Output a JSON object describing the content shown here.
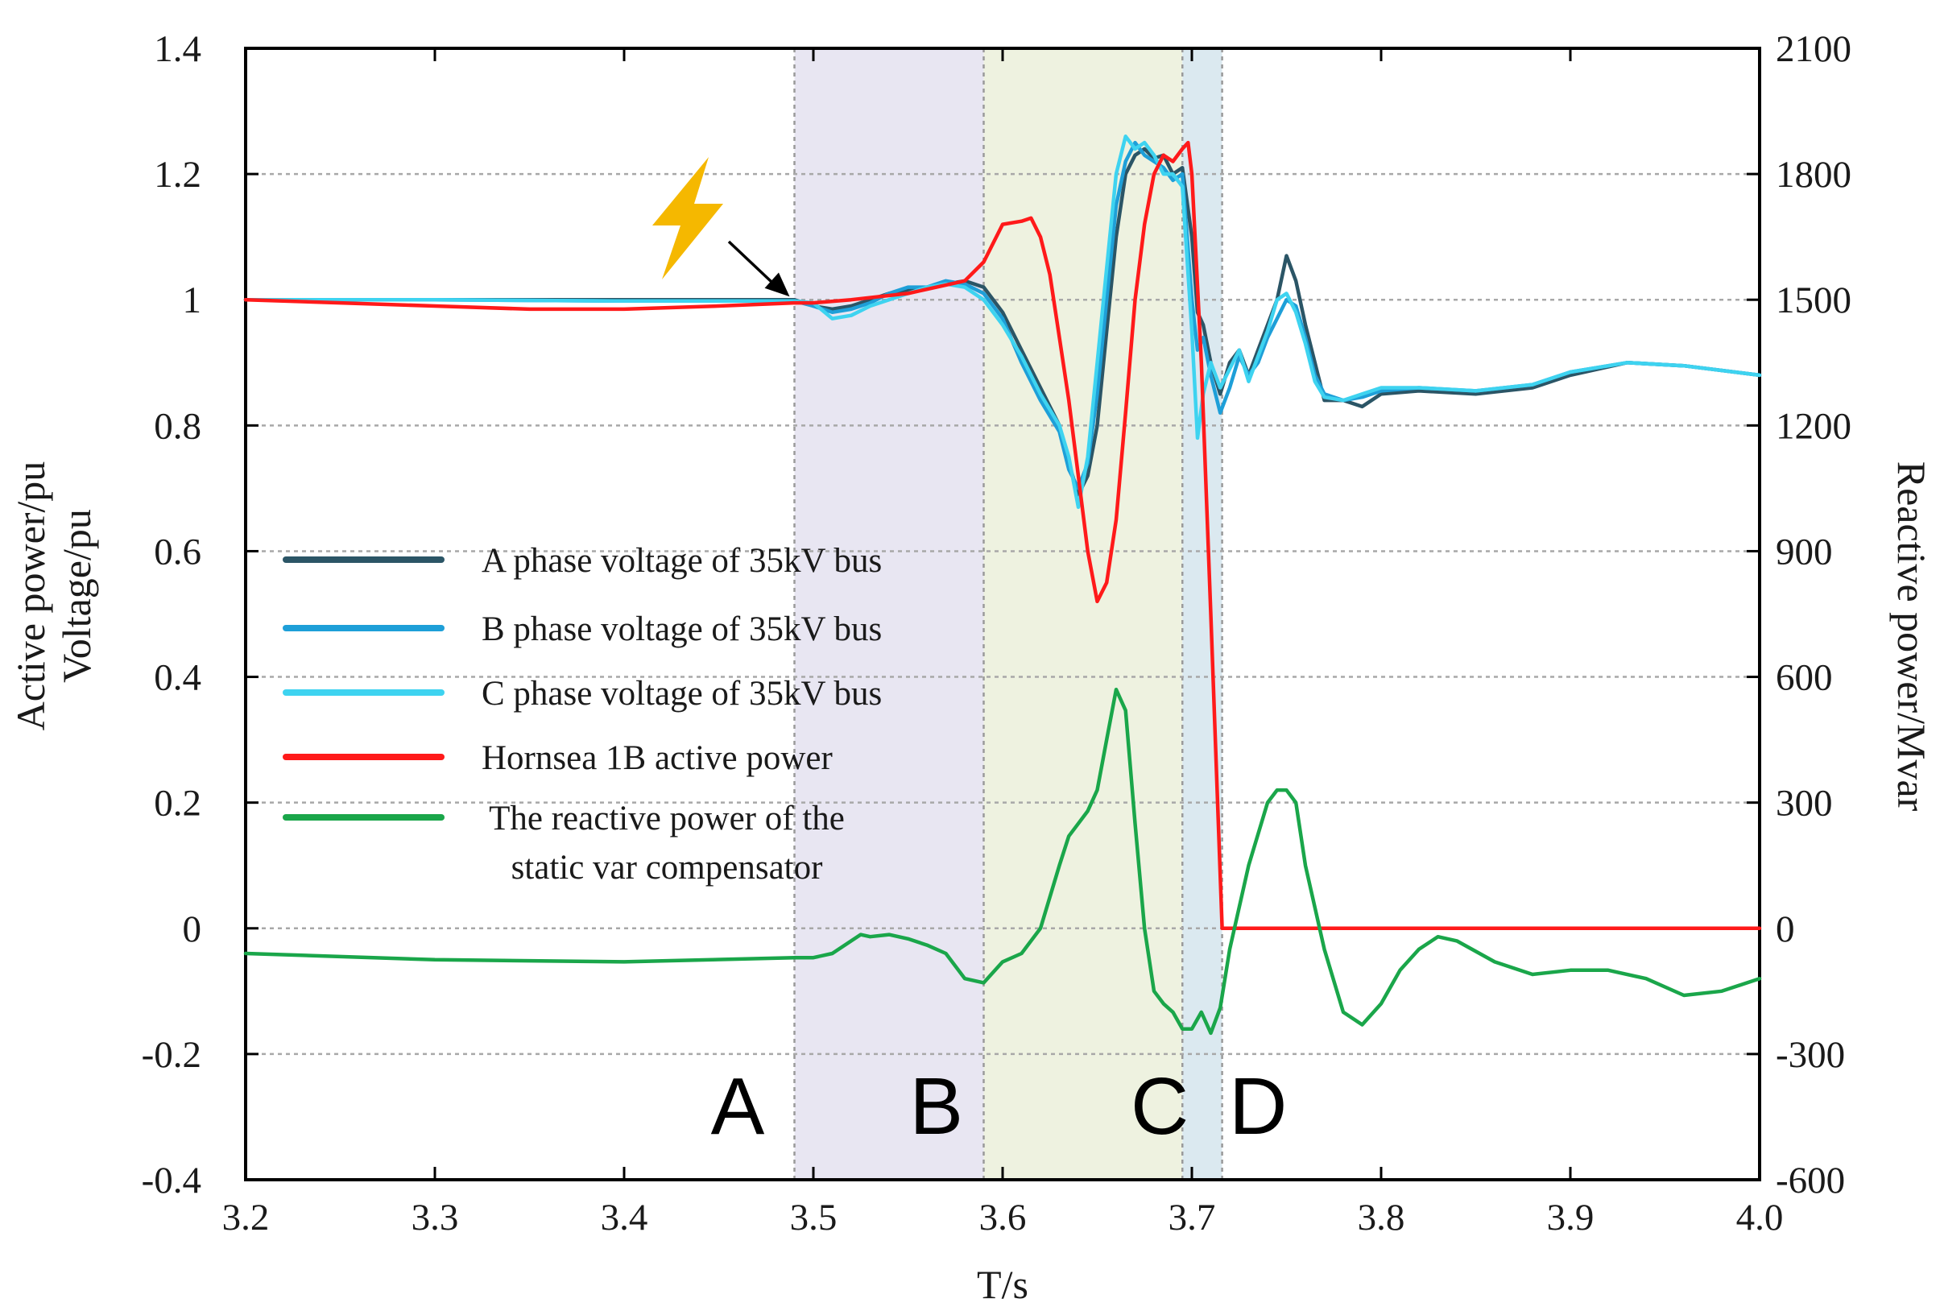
{
  "chart_data": {
    "type": "line",
    "xlabel": "T/s",
    "ylabel_left_lines": [
      "Active power/pu",
      "Voltage/pu"
    ],
    "ylabel_right": "Reactive power/Mvar",
    "xlim": [
      3.2,
      4.0
    ],
    "ylim_left": [
      -0.4,
      1.4
    ],
    "ylim_right": [
      -600,
      2100
    ],
    "x_ticks": [
      3.2,
      3.3,
      3.4,
      3.5,
      3.6,
      3.7,
      3.8,
      3.9,
      4.0
    ],
    "x_tick_labels": [
      "3.2",
      "3.3",
      "3.4",
      "3.5",
      "3.6",
      "3.7",
      "3.8",
      "3.9",
      "4.0"
    ],
    "y_left_ticks": [
      -0.4,
      -0.2,
      0,
      0.2,
      0.4,
      0.6,
      0.8,
      1.0,
      1.2,
      1.4
    ],
    "y_left_tick_labels": [
      "-0.4",
      "-0.2",
      "0",
      "0.2",
      "0.4",
      "0.6",
      "0.8",
      "1",
      "1.2",
      "1.4"
    ],
    "y_right_ticks": [
      -600,
      -300,
      0,
      300,
      600,
      900,
      1200,
      1500,
      1800,
      2100
    ],
    "y_right_tick_labels": [
      "-600",
      "-300",
      "0",
      "300",
      "600",
      "900",
      "1200",
      "1500",
      "1800",
      "2100"
    ],
    "grid": "horizontal-dotted",
    "fault_marker": {
      "x": 3.49,
      "y": 1.0,
      "icon": "lightning-bolt-icon",
      "color": "#f5b800"
    },
    "regions": [
      {
        "label": "A",
        "label_x": 3.46,
        "x_start": 3.49,
        "x_end": 3.59,
        "color": "#e8e6f2"
      },
      {
        "label": "B",
        "label_x": 3.565,
        "x_start": 3.59,
        "x_end": 3.695,
        "color": "#eef2e0"
      },
      {
        "label": "C",
        "label_x": 3.683,
        "x_start": 3.695,
        "x_end": 3.716,
        "color": "#dbe9f0"
      },
      {
        "label": "D",
        "label_x": 3.735,
        "x_start": null,
        "x_end": null,
        "color": null
      }
    ],
    "series": [
      {
        "name": "A phase voltage of 35kV bus",
        "color": "#2b5566",
        "axis": "left",
        "x": [
          3.2,
          3.3,
          3.4,
          3.49,
          3.5,
          3.51,
          3.52,
          3.53,
          3.54,
          3.55,
          3.56,
          3.57,
          3.58,
          3.59,
          3.6,
          3.61,
          3.62,
          3.63,
          3.635,
          3.64,
          3.645,
          3.65,
          3.655,
          3.66,
          3.665,
          3.67,
          3.675,
          3.68,
          3.685,
          3.69,
          3.695,
          3.7,
          3.703,
          3.706,
          3.71,
          3.715,
          3.72,
          3.725,
          3.73,
          3.735,
          3.74,
          3.745,
          3.75,
          3.755,
          3.76,
          3.765,
          3.77,
          3.78,
          3.79,
          3.8,
          3.82,
          3.85,
          3.88,
          3.9,
          3.93,
          3.96,
          4.0
        ],
        "y": [
          1.0,
          1.0,
          1.0,
          1.0,
          0.99,
          0.985,
          0.99,
          1.0,
          1.01,
          1.015,
          1.02,
          1.025,
          1.03,
          1.02,
          0.98,
          0.92,
          0.86,
          0.8,
          0.74,
          0.69,
          0.72,
          0.8,
          0.95,
          1.1,
          1.2,
          1.23,
          1.24,
          1.225,
          1.23,
          1.2,
          1.21,
          1.1,
          0.98,
          0.96,
          0.9,
          0.85,
          0.9,
          0.92,
          0.88,
          0.92,
          0.96,
          1.0,
          1.07,
          1.03,
          0.96,
          0.9,
          0.84,
          0.84,
          0.83,
          0.85,
          0.855,
          0.85,
          0.86,
          0.88,
          0.9,
          0.895,
          0.88
        ]
      },
      {
        "name": "B phase voltage of 35kV bus",
        "color": "#1e9fd8",
        "axis": "left",
        "x": [
          3.2,
          3.3,
          3.4,
          3.49,
          3.5,
          3.51,
          3.52,
          3.53,
          3.54,
          3.55,
          3.56,
          3.57,
          3.58,
          3.59,
          3.6,
          3.61,
          3.62,
          3.63,
          3.635,
          3.64,
          3.645,
          3.65,
          3.655,
          3.66,
          3.665,
          3.67,
          3.675,
          3.68,
          3.685,
          3.69,
          3.695,
          3.7,
          3.703,
          3.706,
          3.71,
          3.715,
          3.72,
          3.725,
          3.73,
          3.735,
          3.74,
          3.745,
          3.75,
          3.755,
          3.76,
          3.765,
          3.77,
          3.78,
          3.79,
          3.8,
          3.82,
          3.85,
          3.88,
          3.9,
          3.93,
          3.96,
          4.0
        ],
        "y": [
          1.0,
          1.0,
          0.998,
          0.998,
          0.99,
          0.98,
          0.985,
          0.995,
          1.01,
          1.02,
          1.02,
          1.03,
          1.025,
          1.01,
          0.97,
          0.9,
          0.84,
          0.79,
          0.73,
          0.7,
          0.74,
          0.85,
          1.0,
          1.15,
          1.22,
          1.25,
          1.23,
          1.22,
          1.21,
          1.19,
          1.2,
          1.0,
          0.92,
          0.94,
          0.88,
          0.82,
          0.86,
          0.91,
          0.88,
          0.9,
          0.94,
          0.97,
          1.0,
          0.99,
          0.94,
          0.88,
          0.85,
          0.84,
          0.845,
          0.855,
          0.86,
          0.855,
          0.865,
          0.885,
          0.9,
          0.895,
          0.88
        ]
      },
      {
        "name": "C phase voltage of 35kV bus",
        "color": "#3ed3f0",
        "axis": "left",
        "x": [
          3.2,
          3.3,
          3.4,
          3.49,
          3.5,
          3.51,
          3.52,
          3.53,
          3.54,
          3.55,
          3.56,
          3.57,
          3.58,
          3.59,
          3.6,
          3.61,
          3.62,
          3.63,
          3.635,
          3.64,
          3.645,
          3.65,
          3.655,
          3.66,
          3.665,
          3.67,
          3.675,
          3.68,
          3.685,
          3.69,
          3.695,
          3.7,
          3.703,
          3.706,
          3.71,
          3.715,
          3.72,
          3.725,
          3.73,
          3.735,
          3.74,
          3.745,
          3.75,
          3.755,
          3.76,
          3.765,
          3.77,
          3.78,
          3.79,
          3.8,
          3.82,
          3.85,
          3.88,
          3.9,
          3.93,
          3.96,
          4.0
        ],
        "y": [
          1.0,
          1.0,
          0.998,
          0.998,
          0.995,
          0.97,
          0.975,
          0.99,
          1.0,
          1.01,
          1.02,
          1.025,
          1.02,
          1.0,
          0.96,
          0.91,
          0.85,
          0.8,
          0.75,
          0.67,
          0.75,
          0.9,
          1.05,
          1.2,
          1.26,
          1.24,
          1.25,
          1.23,
          1.2,
          1.2,
          1.18,
          0.95,
          0.78,
          0.85,
          0.9,
          0.86,
          0.89,
          0.92,
          0.87,
          0.91,
          0.95,
          1.0,
          1.01,
          0.98,
          0.93,
          0.87,
          0.845,
          0.84,
          0.85,
          0.86,
          0.86,
          0.855,
          0.865,
          0.885,
          0.9,
          0.895,
          0.88
        ]
      },
      {
        "name": "Hornsea 1B active power",
        "color": "#ff1a1a",
        "axis": "left",
        "x": [
          3.2,
          3.25,
          3.3,
          3.35,
          3.4,
          3.45,
          3.49,
          3.5,
          3.52,
          3.55,
          3.58,
          3.59,
          3.6,
          3.61,
          3.615,
          3.62,
          3.625,
          3.63,
          3.635,
          3.64,
          3.645,
          3.65,
          3.655,
          3.66,
          3.665,
          3.67,
          3.675,
          3.68,
          3.685,
          3.69,
          3.695,
          3.698,
          3.7,
          3.705,
          3.71,
          3.716,
          3.72,
          3.8,
          4.0
        ],
        "y": [
          1.0,
          0.995,
          0.99,
          0.985,
          0.985,
          0.99,
          0.995,
          0.995,
          1.0,
          1.01,
          1.03,
          1.06,
          1.12,
          1.125,
          1.13,
          1.1,
          1.04,
          0.94,
          0.84,
          0.72,
          0.6,
          0.52,
          0.55,
          0.65,
          0.82,
          1.0,
          1.12,
          1.2,
          1.23,
          1.22,
          1.24,
          1.25,
          1.2,
          0.9,
          0.5,
          0.0,
          0.0,
          0.0,
          0.0
        ]
      },
      {
        "name": "The reactive power of the static var compensator",
        "color": "#1aa64a",
        "axis": "right",
        "x": [
          3.2,
          3.3,
          3.4,
          3.49,
          3.5,
          3.51,
          3.52,
          3.525,
          3.53,
          3.54,
          3.55,
          3.56,
          3.57,
          3.58,
          3.59,
          3.6,
          3.61,
          3.62,
          3.63,
          3.635,
          3.64,
          3.645,
          3.65,
          3.655,
          3.66,
          3.665,
          3.67,
          3.675,
          3.68,
          3.685,
          3.69,
          3.695,
          3.7,
          3.705,
          3.71,
          3.715,
          3.72,
          3.73,
          3.74,
          3.745,
          3.75,
          3.755,
          3.76,
          3.77,
          3.78,
          3.79,
          3.8,
          3.81,
          3.82,
          3.83,
          3.84,
          3.86,
          3.88,
          3.9,
          3.92,
          3.94,
          3.96,
          3.98,
          4.0
        ],
        "y": [
          -60,
          -75,
          -80,
          -70,
          -70,
          -60,
          -30,
          -15,
          -20,
          -15,
          -25,
          -40,
          -60,
          -120,
          -130,
          -80,
          -60,
          0,
          150,
          220,
          250,
          280,
          330,
          450,
          570,
          520,
          250,
          0,
          -150,
          -180,
          -200,
          -240,
          -240,
          -200,
          -250,
          -190,
          -50,
          150,
          300,
          330,
          330,
          300,
          150,
          -50,
          -200,
          -230,
          -180,
          -100,
          -50,
          -20,
          -30,
          -80,
          -110,
          -100,
          -100,
          -120,
          -160,
          -150,
          -120
        ]
      }
    ]
  }
}
